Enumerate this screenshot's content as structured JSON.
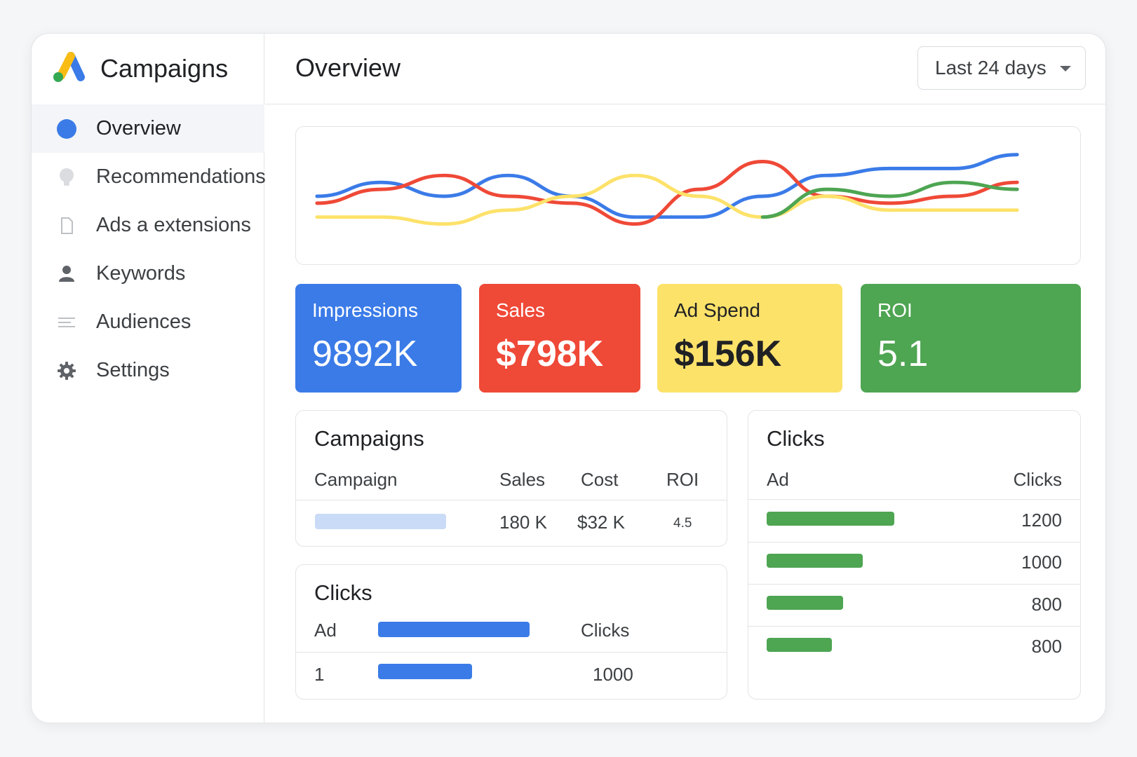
{
  "brand": {
    "title": "Campaigns",
    "logo_icon": "google-ads-logo-icon"
  },
  "sidebar": {
    "items": [
      {
        "label": "Overview",
        "icon": "dot-icon",
        "active": true
      },
      {
        "label": "Recommendations",
        "icon": "lightbulb-icon"
      },
      {
        "label": "Ads a extensions",
        "icon": "document-icon"
      },
      {
        "label": "Keywords",
        "icon": "person-icon"
      },
      {
        "label": "Audiences",
        "icon": "lines-icon"
      },
      {
        "label": "Settings",
        "icon": "gear-icon"
      }
    ]
  },
  "header": {
    "title": "Overview",
    "date_range": "Last 24 days"
  },
  "metrics": [
    {
      "label": "Impressions",
      "value": "9892K",
      "color": "#3b7be8"
    },
    {
      "label": "Sales",
      "value": "$798K",
      "color": "#ef4937"
    },
    {
      "label": "Ad Spend",
      "value": "$156K",
      "color": "#fde26a"
    },
    {
      "label": "ROI",
      "value": "5.1",
      "color": "#4ea552"
    }
  ],
  "chart_data": {
    "type": "line",
    "series": [
      {
        "color": "#3b7be8",
        "values": [
          6,
          8,
          6,
          9,
          6,
          3,
          3,
          6,
          9,
          10,
          10,
          12
        ]
      },
      {
        "color": "#ef4937",
        "values": [
          5,
          7,
          9,
          6,
          5,
          2,
          7,
          11,
          6,
          5,
          6,
          8
        ]
      },
      {
        "color": "#fde26a",
        "values": [
          3,
          3,
          2,
          4,
          6,
          9,
          6,
          3,
          6,
          4,
          4,
          4
        ]
      },
      {
        "color": "#4ea552",
        "values": [
          null,
          null,
          null,
          null,
          null,
          null,
          null,
          3,
          7,
          6,
          8,
          7
        ]
      }
    ],
    "grid": false,
    "legend": "none"
  },
  "campaigns_table": {
    "title": "Campaigns",
    "columns": [
      "Campaign",
      "Sales",
      "Cost",
      "ROI"
    ],
    "rows": [
      {
        "campaign": "",
        "sales": "180 K",
        "cost": "$32 K",
        "roi": "4.5"
      }
    ]
  },
  "clicks_table_left": {
    "title": "Clicks",
    "columns": [
      "Ad",
      "Clicks"
    ],
    "header_bar_color": "#3b7be8",
    "rows": [
      {
        "ad": "1",
        "clicks": "1000",
        "bar_fraction": 0.62
      }
    ]
  },
  "clicks_table_right": {
    "title": "Clicks",
    "columns": [
      "Ad",
      "Clicks"
    ],
    "rows": [
      {
        "clicks": "1200",
        "bar_fraction": 1.0
      },
      {
        "clicks": "1000",
        "bar_fraction": 0.75
      },
      {
        "clicks": "800",
        "bar_fraction": 0.6
      },
      {
        "clicks": "800",
        "bar_fraction": 0.51
      }
    ]
  }
}
